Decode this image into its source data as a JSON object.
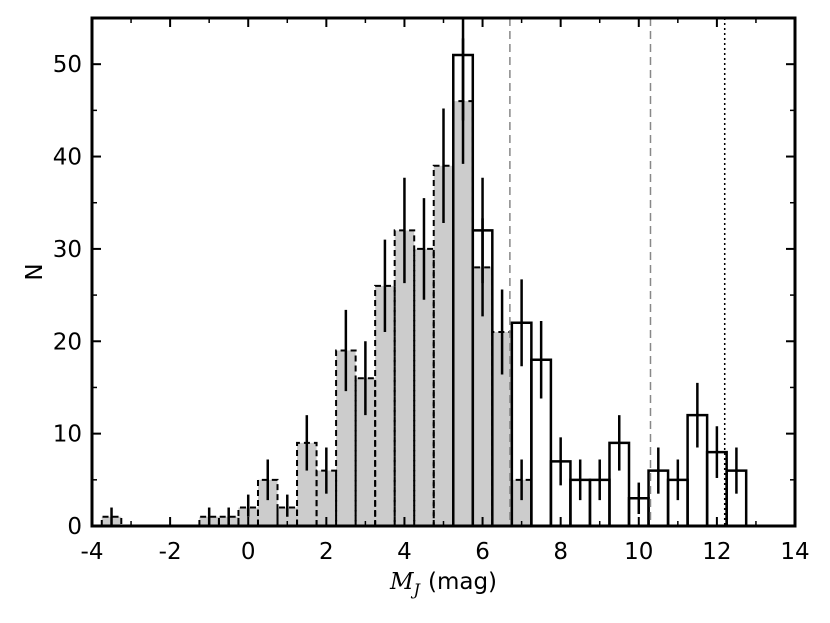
{
  "chart_data": {
    "type": "bar",
    "xlabel": "M_J (mag)",
    "xlabel_parts": {
      "symbol": "M",
      "subscript": "J",
      "unit": "(mag)"
    },
    "ylabel": "N",
    "xlim": [
      -4,
      14
    ],
    "ylim": [
      0,
      55
    ],
    "x_ticks": [
      -4,
      -2,
      0,
      2,
      4,
      6,
      8,
      10,
      12,
      14
    ],
    "y_ticks": [
      0,
      10,
      20,
      30,
      40,
      50
    ],
    "bin_width": 0.5,
    "grid": false,
    "series": [
      {
        "style": "gray-filled-dashed",
        "color": "#cccccc",
        "bins": [
          {
            "x0": -3.75,
            "value": 1,
            "err_low": 0,
            "err_high": 2
          },
          {
            "x0": -1.25,
            "value": 1,
            "err_low": 0,
            "err_high": 2
          },
          {
            "x0": -0.75,
            "value": 1,
            "err_low": 0,
            "err_high": 2
          },
          {
            "x0": -0.25,
            "value": 2,
            "err_low": 1,
            "err_high": 3.4
          },
          {
            "x0": 0.25,
            "value": 5,
            "err_low": 2.8,
            "err_high": 7.2
          },
          {
            "x0": 0.75,
            "value": 2,
            "err_low": 1,
            "err_high": 3.4
          },
          {
            "x0": 1.25,
            "value": 9,
            "err_low": 6,
            "err_high": 12
          },
          {
            "x0": 1.75,
            "value": 6,
            "err_low": 3.5,
            "err_high": 8.5
          },
          {
            "x0": 2.25,
            "value": 19,
            "err_low": 14.6,
            "err_high": 23.4
          },
          {
            "x0": 2.75,
            "value": 16,
            "err_low": 12,
            "err_high": 20
          },
          {
            "x0": 3.25,
            "value": 26,
            "err_low": 21,
            "err_high": 31
          },
          {
            "x0": 3.75,
            "value": 32,
            "err_low": 26.3,
            "err_high": 37.7
          },
          {
            "x0": 4.25,
            "value": 30,
            "err_low": 24.5,
            "err_high": 35.5
          },
          {
            "x0": 4.75,
            "value": 39,
            "err_low": 32.8,
            "err_high": 45.2
          },
          {
            "x0": 5.25,
            "value": 46,
            "err_low": 39.2,
            "err_high": 52.8
          },
          {
            "x0": 5.75,
            "value": 28,
            "err_low": 22.7,
            "err_high": 33.3
          },
          {
            "x0": 6.25,
            "value": 21,
            "err_low": 16.4,
            "err_high": 25.6
          },
          {
            "x0": 6.75,
            "value": 5,
            "err_low": 2.8,
            "err_high": 7.2
          }
        ]
      },
      {
        "style": "black-outline",
        "color": "#000000",
        "bins": [
          {
            "x0": 5.25,
            "value": 51,
            "err_low": 43.9,
            "err_high": 58.1
          },
          {
            "x0": 5.75,
            "value": 32,
            "err_low": 26.3,
            "err_high": 37.7
          },
          {
            "x0": 6.75,
            "value": 22,
            "err_low": 17.3,
            "err_high": 26.7
          },
          {
            "x0": 7.25,
            "value": 18,
            "err_low": 13.8,
            "err_high": 22.2
          },
          {
            "x0": 7.75,
            "value": 7,
            "err_low": 4.4,
            "err_high": 9.6
          },
          {
            "x0": 8.25,
            "value": 5,
            "err_low": 2.8,
            "err_high": 7.2
          },
          {
            "x0": 8.75,
            "value": 5,
            "err_low": 2.8,
            "err_high": 7.2
          },
          {
            "x0": 9.25,
            "value": 9,
            "err_low": 6,
            "err_high": 12
          },
          {
            "x0": 9.75,
            "value": 3,
            "err_low": 1.3,
            "err_high": 4.7
          },
          {
            "x0": 10.25,
            "value": 6,
            "err_low": 3.5,
            "err_high": 8.5
          },
          {
            "x0": 10.75,
            "value": 5,
            "err_low": 2.8,
            "err_high": 7.2
          },
          {
            "x0": 11.25,
            "value": 12,
            "err_low": 8.5,
            "err_high": 15.5
          },
          {
            "x0": 11.75,
            "value": 8,
            "err_low": 5.2,
            "err_high": 10.8
          },
          {
            "x0": 12.25,
            "value": 6,
            "err_low": 3.5,
            "err_high": 8.5
          }
        ]
      }
    ],
    "vertical_lines": [
      {
        "x": 6.7,
        "style": "dashed",
        "color": "#888888"
      },
      {
        "x": 10.3,
        "style": "dashed",
        "color": "#888888"
      },
      {
        "x": 12.2,
        "style": "dotted",
        "color": "#000000"
      }
    ]
  }
}
